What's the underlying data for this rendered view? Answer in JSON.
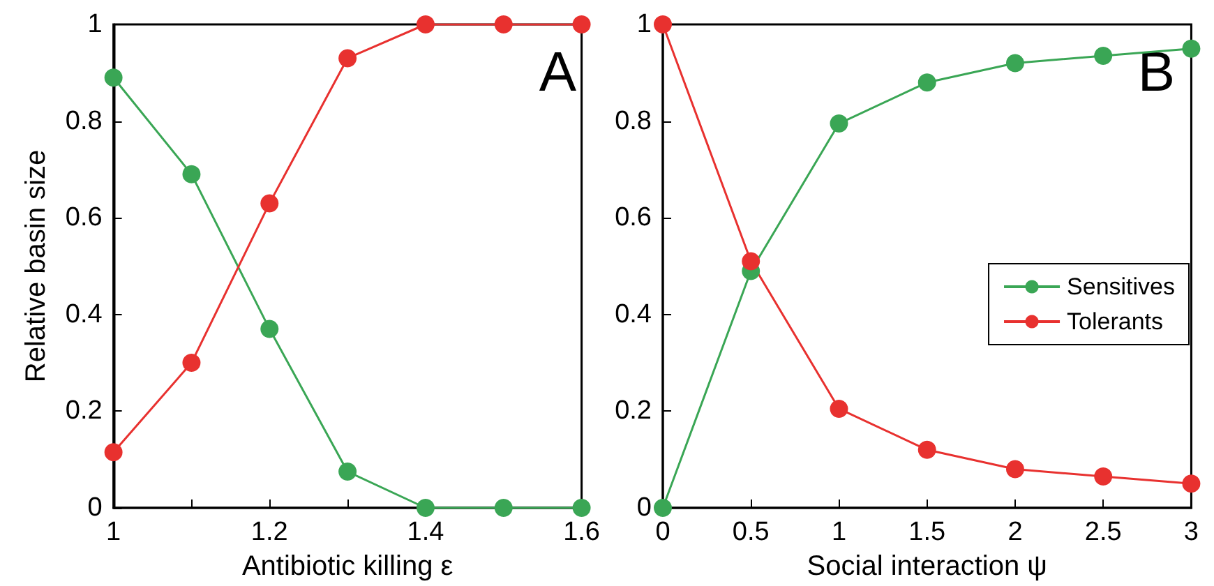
{
  "chart_data": [
    {
      "type": "line",
      "xlabel": "Antibiotic killing ε",
      "ylabel": "Relative basin size",
      "annotations": [
        "A"
      ],
      "x": [
        1,
        1.1,
        1.2,
        1.3,
        1.4,
        1.5,
        1.6
      ],
      "xlim": [
        1,
        1.6
      ],
      "xticks": [
        1,
        {
          "value": 1.1,
          "label": null
        },
        1.2,
        {
          "value": 1.3,
          "label": null
        },
        1.4,
        {
          "value": 1.5,
          "label": null
        },
        1.6
      ],
      "ylim": [
        0,
        1
      ],
      "yticks": [
        0,
        0.2,
        0.4,
        0.6,
        0.8,
        1
      ],
      "marker": "circle",
      "grid": false,
      "legend": false,
      "series": [
        {
          "color": "#3aa655",
          "values": [
            0.89,
            0.69,
            0.37,
            0.075,
            0,
            0,
            0
          ]
        },
        {
          "color": "#e8312f",
          "values": [
            0.115,
            0.3,
            0.63,
            0.93,
            1,
            1,
            1
          ]
        }
      ]
    },
    {
      "type": "line",
      "xlabel": "Social interaction ψ",
      "annotations": [
        "B"
      ],
      "x": [
        0,
        0.5,
        1,
        1.5,
        2,
        2.5,
        3
      ],
      "xlim": [
        0,
        3
      ],
      "xticks": [
        0,
        0.5,
        1,
        1.5,
        2,
        2.5,
        3
      ],
      "ylim": [
        0,
        1
      ],
      "yticks": [
        0,
        0.2,
        0.4,
        0.6,
        0.8,
        1
      ],
      "marker": "circle",
      "grid": false,
      "legend": "right",
      "series": [
        {
          "name": "Sensitives",
          "color": "#3aa655",
          "values": [
            0,
            0.49,
            0.795,
            0.88,
            0.92,
            0.935,
            0.95
          ]
        },
        {
          "name": "Tolerants",
          "color": "#e8312f",
          "values": [
            1,
            0.51,
            0.205,
            0.12,
            0.08,
            0.065,
            0.05
          ]
        }
      ]
    }
  ]
}
